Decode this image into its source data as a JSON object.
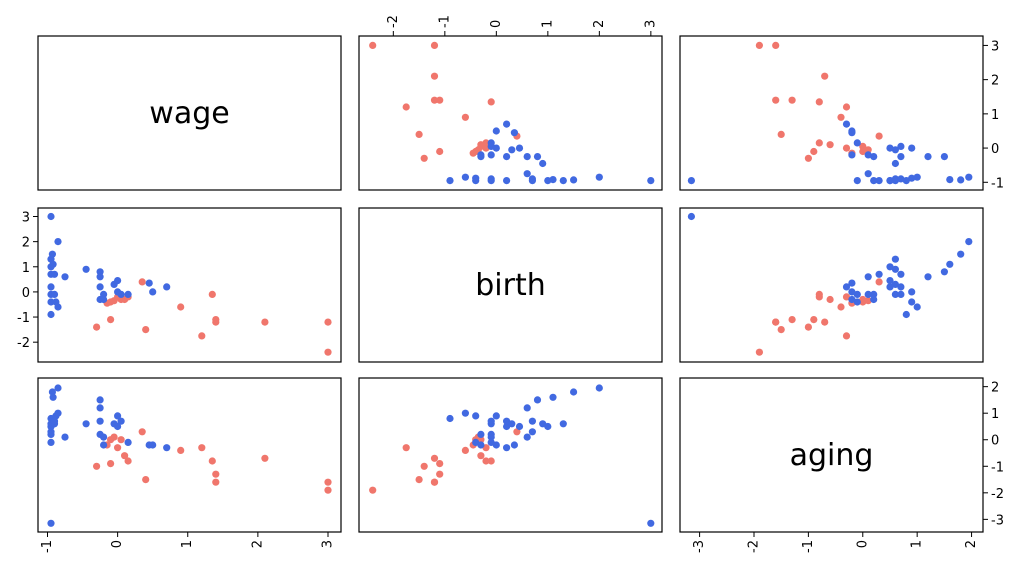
{
  "chart_data": {
    "type": "scatter",
    "subtype": "scatterplot-matrix",
    "variables": [
      "wage",
      "birth",
      "aging"
    ],
    "series_colors": {
      "red": "#f0766c",
      "blue": "#4169e1"
    },
    "axes": {
      "wage": {
        "lim": [
          -1.05,
          3.1
        ],
        "ticks": [
          "-1",
          "0",
          "1",
          "2",
          "3"
        ],
        "tick_values": [
          -1,
          0,
          1,
          2,
          3
        ]
      },
      "birth": {
        "lim": [
          -2.55,
          3.1
        ],
        "ticks": [
          "-2",
          "-1",
          "0",
          "1",
          "2",
          "3"
        ],
        "tick_values": [
          -2,
          -1,
          0,
          1,
          2,
          3
        ]
      },
      "aging": {
        "lim": [
          -3.25,
          2.1
        ],
        "ticks": [
          "-3",
          "-2",
          "-1",
          "0",
          "1",
          "2"
        ],
        "tick_values": [
          -3,
          -2,
          -1,
          0,
          1,
          2
        ]
      }
    },
    "points": [
      {
        "wage": 3.0,
        "birth": -2.4,
        "aging": -1.9,
        "group": "red"
      },
      {
        "wage": 3.0,
        "birth": -1.2,
        "aging": -1.6,
        "group": "red"
      },
      {
        "wage": 2.1,
        "birth": -1.2,
        "aging": -0.7,
        "group": "red"
      },
      {
        "wage": 1.4,
        "birth": -1.2,
        "aging": -1.6,
        "group": "red"
      },
      {
        "wage": 1.4,
        "birth": -1.1,
        "aging": -1.3,
        "group": "red"
      },
      {
        "wage": 1.35,
        "birth": -0.1,
        "aging": -0.8,
        "group": "red"
      },
      {
        "wage": 1.2,
        "birth": -1.75,
        "aging": -0.3,
        "group": "red"
      },
      {
        "wage": 0.9,
        "birth": -0.6,
        "aging": -0.4,
        "group": "red"
      },
      {
        "wage": 0.4,
        "birth": -1.5,
        "aging": -1.5,
        "group": "red"
      },
      {
        "wage": 0.35,
        "birth": 0.4,
        "aging": 0.3,
        "group": "red"
      },
      {
        "wage": -0.3,
        "birth": -1.4,
        "aging": -1.0,
        "group": "red"
      },
      {
        "wage": -0.1,
        "birth": -1.1,
        "aging": -0.9,
        "group": "red"
      },
      {
        "wage": 0.1,
        "birth": -0.3,
        "aging": -0.6,
        "group": "red"
      },
      {
        "wage": 0.0,
        "birth": -0.2,
        "aging": -0.3,
        "group": "red"
      },
      {
        "wage": -0.1,
        "birth": -0.4,
        "aging": 0.0,
        "group": "red"
      },
      {
        "wage": -0.05,
        "birth": -0.35,
        "aging": 0.1,
        "group": "red"
      },
      {
        "wage": -0.15,
        "birth": -0.45,
        "aging": -0.2,
        "group": "red"
      },
      {
        "wage": 0.05,
        "birth": -0.3,
        "aging": 0.0,
        "group": "red"
      },
      {
        "wage": 0.15,
        "birth": -0.2,
        "aging": -0.8,
        "group": "red"
      },
      {
        "wage": -0.95,
        "birth": 3.0,
        "aging": -3.15,
        "group": "blue"
      },
      {
        "wage": -0.95,
        "birth": 1.3,
        "aging": 0.6,
        "group": "blue"
      },
      {
        "wage": -0.95,
        "birth": 1.0,
        "aging": 0.5,
        "group": "blue"
      },
      {
        "wage": -0.95,
        "birth": 0.7,
        "aging": 0.3,
        "group": "blue"
      },
      {
        "wage": -0.95,
        "birth": 0.2,
        "aging": 0.5,
        "group": "blue"
      },
      {
        "wage": -0.95,
        "birth": -0.1,
        "aging": 0.2,
        "group": "blue"
      },
      {
        "wage": -0.95,
        "birth": -0.4,
        "aging": -0.1,
        "group": "blue"
      },
      {
        "wage": -0.95,
        "birth": -0.9,
        "aging": 0.8,
        "group": "blue"
      },
      {
        "wage": -0.93,
        "birth": 1.5,
        "aging": 1.8,
        "group": "blue"
      },
      {
        "wage": -0.92,
        "birth": 1.1,
        "aging": 1.6,
        "group": "blue"
      },
      {
        "wage": -0.9,
        "birth": -0.1,
        "aging": 0.6,
        "group": "blue"
      },
      {
        "wage": -0.88,
        "birth": -0.4,
        "aging": 0.9,
        "group": "blue"
      },
      {
        "wage": -0.85,
        "birth": 2.0,
        "aging": 1.95,
        "group": "blue"
      },
      {
        "wage": -0.85,
        "birth": -0.6,
        "aging": 1.0,
        "group": "blue"
      },
      {
        "wage": -0.9,
        "birth": 0.7,
        "aging": 0.7,
        "group": "blue"
      },
      {
        "wage": -0.75,
        "birth": 0.6,
        "aging": 0.1,
        "group": "blue"
      },
      {
        "wage": -0.45,
        "birth": 0.9,
        "aging": 0.6,
        "group": "blue"
      },
      {
        "wage": -0.25,
        "birth": 0.8,
        "aging": 1.5,
        "group": "blue"
      },
      {
        "wage": -0.25,
        "birth": 0.6,
        "aging": 1.2,
        "group": "blue"
      },
      {
        "wage": -0.25,
        "birth": 0.2,
        "aging": 0.7,
        "group": "blue"
      },
      {
        "wage": -0.25,
        "birth": -0.3,
        "aging": 0.2,
        "group": "blue"
      },
      {
        "wage": -0.2,
        "birth": -0.1,
        "aging": 0.1,
        "group": "blue"
      },
      {
        "wage": -0.2,
        "birth": -0.3,
        "aging": -0.2,
        "group": "blue"
      },
      {
        "wage": -0.05,
        "birth": 0.3,
        "aging": 0.6,
        "group": "blue"
      },
      {
        "wage": 0.0,
        "birth": 0.0,
        "aging": 0.9,
        "group": "blue"
      },
      {
        "wage": 0.0,
        "birth": 0.45,
        "aging": 0.5,
        "group": "blue"
      },
      {
        "wage": 0.05,
        "birth": -0.1,
        "aging": 0.7,
        "group": "blue"
      },
      {
        "wage": 0.15,
        "birth": -0.1,
        "aging": -0.1,
        "group": "blue"
      },
      {
        "wage": 0.45,
        "birth": 0.35,
        "aging": -0.2,
        "group": "blue"
      },
      {
        "wage": 0.5,
        "birth": 0.0,
        "aging": -0.2,
        "group": "blue"
      },
      {
        "wage": 0.7,
        "birth": 0.2,
        "aging": -0.3,
        "group": "blue"
      }
    ]
  }
}
